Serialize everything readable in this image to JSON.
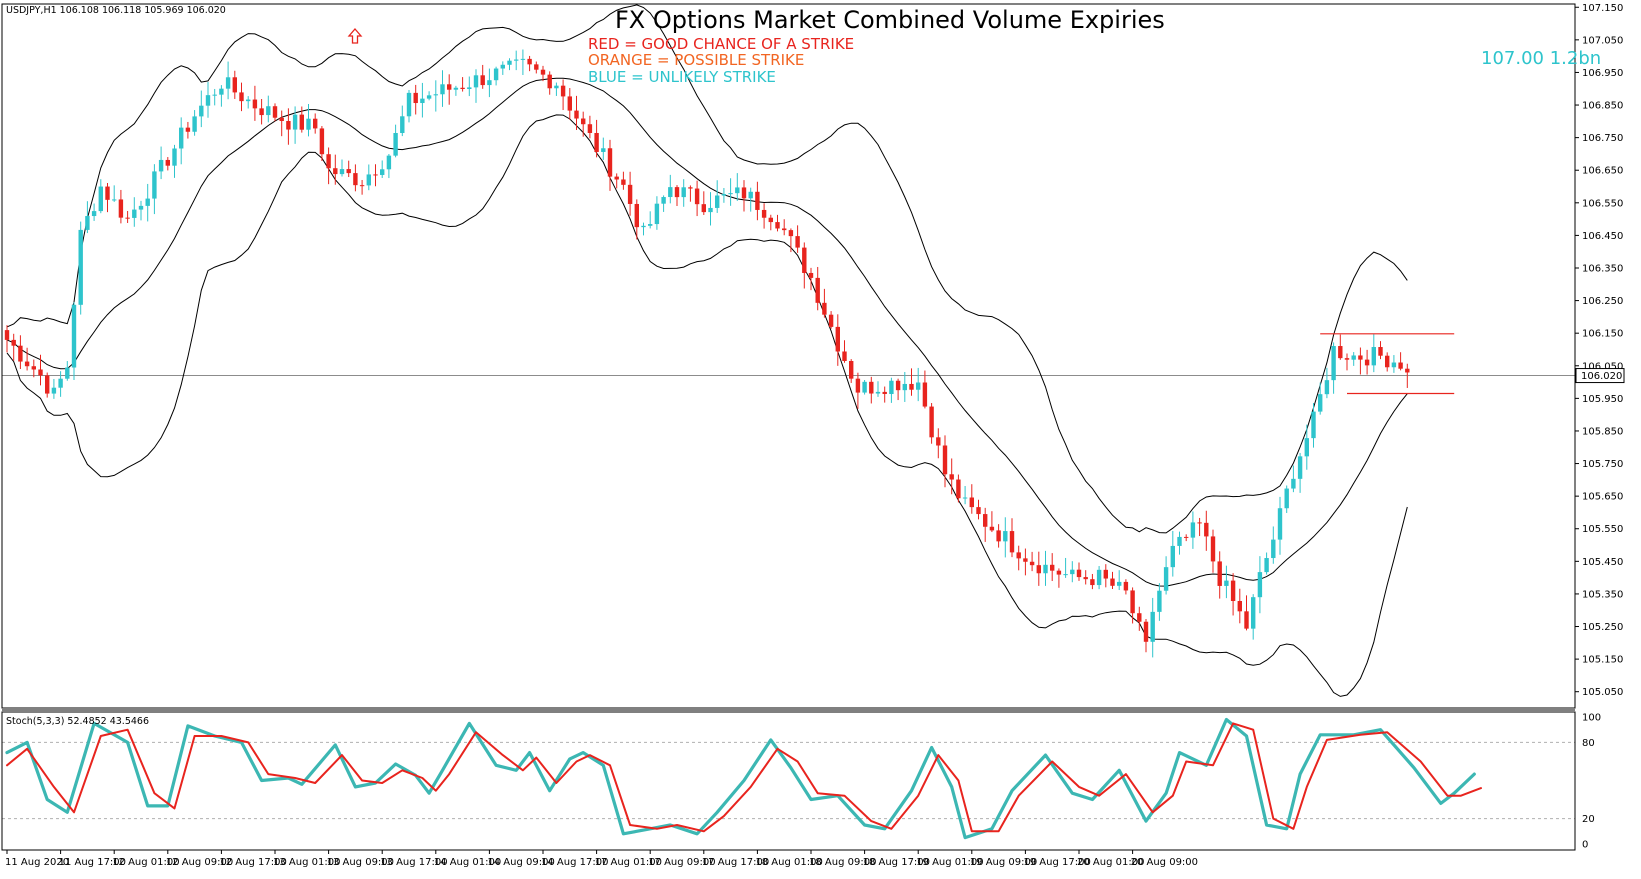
{
  "chart_data": [
    {
      "type": "candlestick",
      "symbol_header": "USDJPY,H1  106.108 106.118 105.969 106.020",
      "title": "FX Options Market Combined Volume Expiries",
      "legend": [
        {
          "text": "RED = GOOD CHANCE OF A STRIKE",
          "color": "#e8241e"
        },
        {
          "text": "ORANGE = POSSIBLE STRIKE",
          "color": "#f26522"
        },
        {
          "text": "BLUE = UNLIKELY STRIKE",
          "color": "#2ec4cc"
        }
      ],
      "expiry_annotation": {
        "text": "107.00 1.2bn",
        "color": "#2ec4cc"
      },
      "ylim": [
        105.0,
        107.16
      ],
      "y_ticks": [
        "107.150",
        "107.050",
        "106.950",
        "106.850",
        "106.750",
        "106.650",
        "106.550",
        "106.450",
        "106.350",
        "106.250",
        "106.150",
        "106.050",
        "105.950",
        "105.850",
        "105.750",
        "105.650",
        "105.550",
        "105.450",
        "105.350",
        "105.250",
        "105.150",
        "105.050"
      ],
      "current_price": "106.020",
      "x_ticks": [
        "11 Aug 2020",
        "11 Aug 17:00",
        "12 Aug 01:00",
        "12 Aug 09:00",
        "12 Aug 17:00",
        "13 Aug 01:00",
        "13 Aug 09:00",
        "13 Aug 17:00",
        "14 Aug 01:00",
        "14 Aug 09:00",
        "14 Aug 17:00",
        "17 Aug 01:00",
        "17 Aug 09:00",
        "17 Aug 17:00",
        "18 Aug 01:00",
        "18 Aug 09:00",
        "18 Aug 17:00",
        "19 Aug 01:00",
        "19 Aug 09:00",
        "19 Aug 17:00",
        "20 Aug 01:00",
        "20 Aug 09:00"
      ],
      "bars_per_tick": 8,
      "path_points": [
        [
          0,
          106.13
        ],
        [
          5,
          106.02
        ],
        [
          7,
          105.96
        ],
        [
          9,
          106.05
        ],
        [
          11,
          106.45
        ],
        [
          14,
          106.6
        ],
        [
          18,
          106.5
        ],
        [
          22,
          106.62
        ],
        [
          28,
          106.82
        ],
        [
          32,
          106.92
        ],
        [
          37,
          106.85
        ],
        [
          42,
          106.8
        ],
        [
          46,
          106.78
        ],
        [
          48,
          106.65
        ],
        [
          53,
          106.62
        ],
        [
          57,
          106.7
        ],
        [
          60,
          106.86
        ],
        [
          66,
          106.9
        ],
        [
          72,
          106.94
        ],
        [
          77,
          106.97
        ],
        [
          82,
          106.92
        ],
        [
          86,
          106.78
        ],
        [
          92,
          106.6
        ],
        [
          95,
          106.45
        ],
        [
          99,
          106.6
        ],
        [
          104,
          106.55
        ],
        [
          110,
          106.58
        ],
        [
          115,
          106.5
        ],
        [
          120,
          106.32
        ],
        [
          124,
          106.12
        ],
        [
          127,
          105.98
        ],
        [
          133,
          106.0
        ],
        [
          136,
          106.0
        ],
        [
          140,
          105.72
        ],
        [
          143,
          105.62
        ],
        [
          149,
          105.52
        ],
        [
          153,
          105.45
        ],
        [
          159,
          105.4
        ],
        [
          163,
          105.4
        ],
        [
          167,
          105.35
        ],
        [
          170,
          105.18
        ],
        [
          171,
          105.3
        ],
        [
          174,
          105.48
        ],
        [
          178,
          105.56
        ],
        [
          181,
          105.4
        ],
        [
          185,
          105.25
        ],
        [
          187,
          105.4
        ],
        [
          189,
          105.52
        ],
        [
          192,
          105.73
        ],
        [
          195,
          105.88
        ],
        [
          198,
          106.1
        ],
        [
          201,
          106.08
        ],
        [
          205,
          106.08
        ],
        [
          208,
          106.06
        ],
        [
          209,
          106.02
        ]
      ],
      "boxes": [
        {
          "color": "#e8241e",
          "x_start_bar": 196,
          "x_end_bar": 216,
          "price": 106.148
        },
        {
          "color": "#e8241e",
          "x_start_bar": 200,
          "x_end_bar": 216,
          "price": 105.965
        }
      ],
      "stochastic": {
        "label": "Stoch(5,3,3) 52.4852 43.5466",
        "ylim": [
          0,
          100
        ],
        "y_ticks": [
          "100",
          "80",
          "20",
          "0"
        ],
        "levels": [
          80,
          20
        ],
        "main_color": "#3cb7b3",
        "signal_color": "#e8241e",
        "main": [
          [
            0,
            72
          ],
          [
            3,
            80
          ],
          [
            6,
            35
          ],
          [
            9,
            25
          ],
          [
            13,
            95
          ],
          [
            18,
            80
          ],
          [
            21,
            30
          ],
          [
            24,
            30
          ],
          [
            27,
            93
          ],
          [
            31,
            85
          ],
          [
            35,
            80
          ],
          [
            38,
            50
          ],
          [
            42,
            52
          ],
          [
            44,
            47
          ],
          [
            49,
            78
          ],
          [
            52,
            45
          ],
          [
            55,
            48
          ],
          [
            58,
            63
          ],
          [
            61,
            54
          ],
          [
            63,
            40
          ],
          [
            65,
            58
          ],
          [
            69,
            95
          ],
          [
            73,
            62
          ],
          [
            76,
            58
          ],
          [
            78,
            72
          ],
          [
            81,
            42
          ],
          [
            84,
            67
          ],
          [
            86,
            72
          ],
          [
            89,
            62
          ],
          [
            92,
            8
          ],
          [
            96,
            12
          ],
          [
            99,
            15
          ],
          [
            103,
            8
          ],
          [
            106,
            25
          ],
          [
            110,
            50
          ],
          [
            114,
            82
          ],
          [
            117,
            60
          ],
          [
            120,
            35
          ],
          [
            124,
            38
          ],
          [
            128,
            15
          ],
          [
            131,
            12
          ],
          [
            135,
            42
          ],
          [
            138,
            76
          ],
          [
            141,
            45
          ],
          [
            143,
            5
          ],
          [
            147,
            12
          ],
          [
            150,
            42
          ],
          [
            155,
            70
          ],
          [
            159,
            40
          ],
          [
            162,
            35
          ],
          [
            166,
            58
          ],
          [
            170,
            18
          ],
          [
            173,
            40
          ],
          [
            175,
            72
          ],
          [
            179,
            62
          ],
          [
            182,
            98
          ],
          [
            185,
            85
          ],
          [
            188,
            15
          ],
          [
            191,
            12
          ],
          [
            193,
            55
          ],
          [
            196,
            86
          ],
          [
            201,
            86
          ],
          [
            205,
            90
          ],
          [
            210,
            60
          ],
          [
            214,
            32
          ],
          [
            216,
            40
          ],
          [
            219,
            55
          ]
        ],
        "signal": [
          [
            0,
            62
          ],
          [
            3,
            75
          ],
          [
            7,
            45
          ],
          [
            10,
            25
          ],
          [
            14,
            85
          ],
          [
            18,
            90
          ],
          [
            22,
            40
          ],
          [
            25,
            28
          ],
          [
            28,
            85
          ],
          [
            32,
            85
          ],
          [
            36,
            80
          ],
          [
            39,
            55
          ],
          [
            43,
            52
          ],
          [
            46,
            48
          ],
          [
            50,
            70
          ],
          [
            53,
            50
          ],
          [
            56,
            48
          ],
          [
            59,
            58
          ],
          [
            62,
            52
          ],
          [
            64,
            42
          ],
          [
            66,
            55
          ],
          [
            70,
            88
          ],
          [
            74,
            70
          ],
          [
            77,
            58
          ],
          [
            79,
            68
          ],
          [
            82,
            48
          ],
          [
            85,
            65
          ],
          [
            87,
            70
          ],
          [
            90,
            62
          ],
          [
            93,
            15
          ],
          [
            97,
            12
          ],
          [
            100,
            15
          ],
          [
            104,
            10
          ],
          [
            107,
            22
          ],
          [
            111,
            45
          ],
          [
            115,
            75
          ],
          [
            118,
            65
          ],
          [
            121,
            40
          ],
          [
            125,
            38
          ],
          [
            129,
            18
          ],
          [
            132,
            12
          ],
          [
            136,
            38
          ],
          [
            139,
            70
          ],
          [
            142,
            50
          ],
          [
            144,
            10
          ],
          [
            148,
            10
          ],
          [
            151,
            38
          ],
          [
            156,
            65
          ],
          [
            160,
            45
          ],
          [
            163,
            38
          ],
          [
            167,
            55
          ],
          [
            171,
            25
          ],
          [
            174,
            38
          ],
          [
            176,
            65
          ],
          [
            180,
            62
          ],
          [
            183,
            95
          ],
          [
            186,
            90
          ],
          [
            189,
            20
          ],
          [
            192,
            12
          ],
          [
            194,
            45
          ],
          [
            197,
            82
          ],
          [
            202,
            86
          ],
          [
            206,
            88
          ],
          [
            211,
            65
          ],
          [
            215,
            38
          ],
          [
            217,
            38
          ],
          [
            220,
            44
          ]
        ]
      }
    }
  ]
}
